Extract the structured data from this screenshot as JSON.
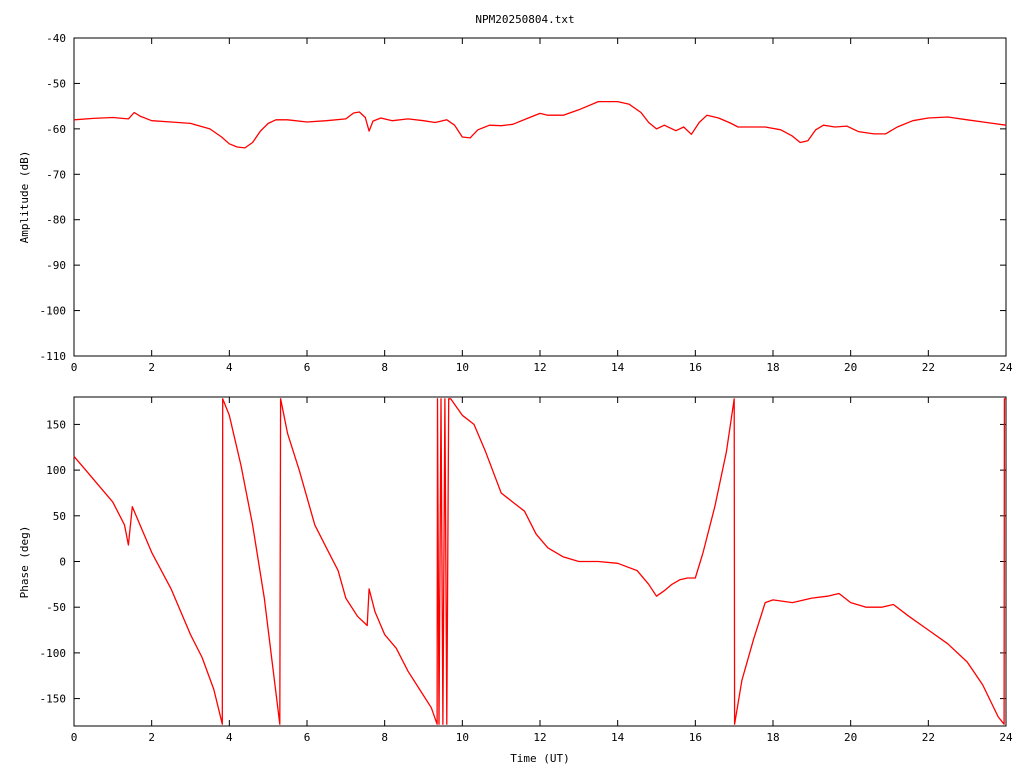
{
  "title": "NPM20250804.txt",
  "colors": {
    "trace": "#ff0000",
    "axis": "#000000",
    "background": "#ffffff"
  },
  "chart_data": [
    {
      "type": "line",
      "name": "amplitude",
      "ylabel": "Amplitude (dB)",
      "xlabel": "",
      "xlim": [
        0,
        24
      ],
      "ylim": [
        -110,
        -40
      ],
      "xticks": [
        0,
        2,
        4,
        6,
        8,
        10,
        12,
        14,
        16,
        18,
        20,
        22,
        24
      ],
      "yticks": [
        -40,
        -50,
        -60,
        -70,
        -80,
        -90,
        -100,
        -110
      ],
      "grid": false,
      "x": [
        0,
        0.5,
        1.0,
        1.4,
        1.55,
        1.7,
        2.0,
        2.5,
        3.0,
        3.5,
        3.8,
        4.0,
        4.2,
        4.4,
        4.6,
        4.8,
        5.0,
        5.2,
        5.5,
        6.0,
        6.5,
        7.0,
        7.2,
        7.35,
        7.5,
        7.6,
        7.7,
        7.9,
        8.2,
        8.6,
        9.0,
        9.3,
        9.6,
        9.8,
        10.0,
        10.2,
        10.4,
        10.7,
        11.0,
        11.3,
        11.7,
        12.0,
        12.2,
        12.6,
        13.0,
        13.5,
        14.0,
        14.3,
        14.6,
        14.8,
        15.0,
        15.2,
        15.5,
        15.7,
        15.9,
        16.1,
        16.3,
        16.6,
        16.9,
        17.1,
        17.4,
        17.8,
        18.2,
        18.5,
        18.7,
        18.9,
        19.1,
        19.3,
        19.6,
        19.9,
        20.2,
        20.6,
        20.9,
        21.2,
        21.6,
        22.0,
        22.5,
        23.0,
        23.5,
        24.0
      ],
      "y": [
        -58,
        -57.7,
        -57.5,
        -57.8,
        -56.4,
        -57.2,
        -58.2,
        -58.5,
        -58.8,
        -60.0,
        -61.8,
        -63.3,
        -64.0,
        -64.2,
        -63.0,
        -60.5,
        -58.8,
        -58.0,
        -58.0,
        -58.5,
        -58.2,
        -57.8,
        -56.5,
        -56.3,
        -57.5,
        -60.5,
        -58.3,
        -57.6,
        -58.2,
        -57.8,
        -58.2,
        -58.6,
        -58.0,
        -59.2,
        -61.8,
        -62.0,
        -60.2,
        -59.2,
        -59.3,
        -59.0,
        -57.6,
        -56.6,
        -57.0,
        -57.0,
        -55.8,
        -54.0,
        -54.0,
        -54.6,
        -56.4,
        -58.6,
        -60.0,
        -59.2,
        -60.4,
        -59.6,
        -61.2,
        -58.6,
        -57.0,
        -57.6,
        -58.7,
        -59.6,
        -59.6,
        -59.6,
        -60.2,
        -61.6,
        -63.0,
        -62.6,
        -60.2,
        -59.2,
        -59.6,
        -59.4,
        -60.6,
        -61.1,
        -61.1,
        -59.6,
        -58.2,
        -57.6,
        -57.4,
        -58.0,
        -58.6,
        -59.2
      ]
    },
    {
      "type": "line",
      "name": "phase",
      "ylabel": "Phase (deg)",
      "xlabel": "Time (UT)",
      "xlim": [
        0,
        24
      ],
      "ylim": [
        -180,
        180
      ],
      "xticks": [
        0,
        2,
        4,
        6,
        8,
        10,
        12,
        14,
        16,
        18,
        20,
        22,
        24
      ],
      "yticks": [
        150,
        100,
        50,
        0,
        -50,
        -100,
        -150
      ],
      "grid": false,
      "x": [
        0,
        0.3,
        0.6,
        1.0,
        1.3,
        1.4,
        1.5,
        1.7,
        2.0,
        2.5,
        3.0,
        3.3,
        3.6,
        3.82,
        3.83,
        4.0,
        4.3,
        4.6,
        4.9,
        5.3,
        5.32,
        5.5,
        5.8,
        6.2,
        6.5,
        6.8,
        7.0,
        7.3,
        7.55,
        7.6,
        7.75,
        8.0,
        8.3,
        8.6,
        8.9,
        9.2,
        9.35,
        9.36,
        9.4,
        9.45,
        9.5,
        9.55,
        9.6,
        9.65,
        9.7,
        10.0,
        10.3,
        10.6,
        11.0,
        11.3,
        11.6,
        11.9,
        12.2,
        12.6,
        13.0,
        13.5,
        14.0,
        14.5,
        14.8,
        15.0,
        15.2,
        15.4,
        15.6,
        15.8,
        16.0,
        16.2,
        16.5,
        16.8,
        17.0,
        17.01,
        17.2,
        17.5,
        17.8,
        18.0,
        18.5,
        19.0,
        19.4,
        19.7,
        20.0,
        20.4,
        20.8,
        21.1,
        21.5,
        22.0,
        22.5,
        23.0,
        23.4,
        23.8,
        23.95,
        23.96,
        24.0
      ],
      "y": [
        115,
        100,
        85,
        65,
        40,
        18,
        60,
        40,
        10,
        -30,
        -80,
        -105,
        -140,
        -178,
        178,
        160,
        105,
        40,
        -40,
        -178,
        178,
        140,
        100,
        40,
        15,
        -10,
        -40,
        -60,
        -70,
        -30,
        -55,
        -80,
        -95,
        -120,
        -140,
        -160,
        -178,
        178,
        -178,
        178,
        -178,
        178,
        -178,
        178,
        178,
        160,
        150,
        120,
        75,
        65,
        55,
        30,
        15,
        5,
        0,
        0,
        -2,
        -10,
        -25,
        -38,
        -32,
        -25,
        -20,
        -18,
        -18,
        10,
        60,
        120,
        178,
        -178,
        -130,
        -85,
        -45,
        -42,
        -45,
        -40,
        -38,
        -35,
        -45,
        -50,
        -50,
        -47,
        -60,
        -75,
        -90,
        -110,
        -135,
        -170,
        -178,
        178,
        178
      ]
    }
  ]
}
